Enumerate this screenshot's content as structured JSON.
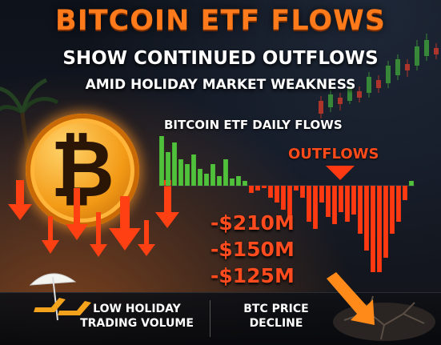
{
  "headline": {
    "line1": "BITCOIN ETF FLOWS",
    "line2": "SHOW CONTINUED OUTFLOWS",
    "line3": "AMID HOLIDAY MARKET WEAKNESS"
  },
  "chart_data": {
    "type": "bar",
    "title": "BITCOIN ETF DAILY FLOWS",
    "annotation": "OUTFLOWS",
    "values": [
      42,
      28,
      36,
      22,
      18,
      26,
      14,
      10,
      18,
      8,
      22,
      6,
      8,
      4,
      -6,
      -4,
      -2,
      -10,
      -14,
      -20,
      -26,
      -4,
      -10,
      -30,
      -36,
      -14,
      -26,
      -32,
      -22,
      -30,
      -24,
      -40,
      -54,
      -72,
      -96,
      -60,
      -40,
      -30,
      -12,
      4
    ],
    "colors": {
      "positive": "#4fc13a",
      "negative": "#ff3a12"
    }
  },
  "amounts": [
    "-$210M",
    "-$150M",
    "-$125M"
  ],
  "footer": {
    "left_line1": "LOW HOLIDAY",
    "left_line2": "TRADING VOLUME",
    "right_line1": "BTC PRICE",
    "right_line2": "DECLINE"
  },
  "coin": {
    "symbol": "₿"
  },
  "icons": [
    "palm-tree-icon",
    "beach-umbrella-icon",
    "beach-chair-icon",
    "down-arrow-icon",
    "crack-icon",
    "candlestick-chart-icon"
  ]
}
